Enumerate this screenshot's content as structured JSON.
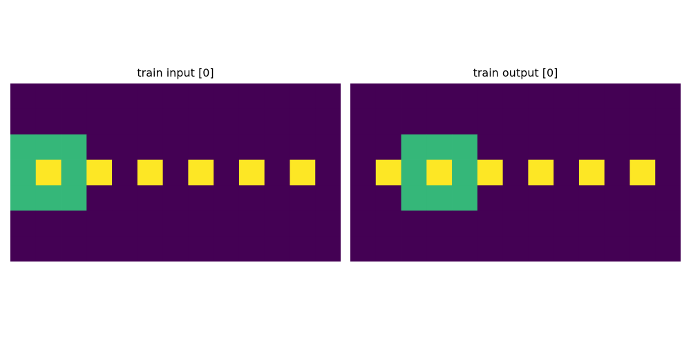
{
  "palette": {
    "0": "#440154",
    "3": "#35b779",
    "4": "#fde725"
  },
  "panels": [
    {
      "title": "train input [0]",
      "grid": [
        [
          0,
          0,
          0,
          0,
          0,
          0,
          0,
          0,
          0,
          0,
          0,
          0,
          0
        ],
        [
          0,
          0,
          0,
          0,
          0,
          0,
          0,
          0,
          0,
          0,
          0,
          0,
          0
        ],
        [
          3,
          3,
          3,
          0,
          0,
          0,
          0,
          0,
          0,
          0,
          0,
          0,
          0
        ],
        [
          3,
          4,
          3,
          4,
          0,
          4,
          0,
          4,
          0,
          4,
          0,
          4,
          0
        ],
        [
          3,
          3,
          3,
          0,
          0,
          0,
          0,
          0,
          0,
          0,
          0,
          0,
          0
        ],
        [
          0,
          0,
          0,
          0,
          0,
          0,
          0,
          0,
          0,
          0,
          0,
          0,
          0
        ],
        [
          0,
          0,
          0,
          0,
          0,
          0,
          0,
          0,
          0,
          0,
          0,
          0,
          0
        ]
      ]
    },
    {
      "title": "train output [0]",
      "grid": [
        [
          0,
          0,
          0,
          0,
          0,
          0,
          0,
          0,
          0,
          0,
          0,
          0,
          0
        ],
        [
          0,
          0,
          0,
          0,
          0,
          0,
          0,
          0,
          0,
          0,
          0,
          0,
          0
        ],
        [
          0,
          0,
          3,
          3,
          3,
          0,
          0,
          0,
          0,
          0,
          0,
          0,
          0
        ],
        [
          0,
          4,
          3,
          4,
          3,
          4,
          0,
          4,
          0,
          4,
          0,
          4,
          0
        ],
        [
          0,
          0,
          3,
          3,
          3,
          0,
          0,
          0,
          0,
          0,
          0,
          0,
          0
        ],
        [
          0,
          0,
          0,
          0,
          0,
          0,
          0,
          0,
          0,
          0,
          0,
          0,
          0
        ],
        [
          0,
          0,
          0,
          0,
          0,
          0,
          0,
          0,
          0,
          0,
          0,
          0,
          0
        ]
      ]
    }
  ]
}
